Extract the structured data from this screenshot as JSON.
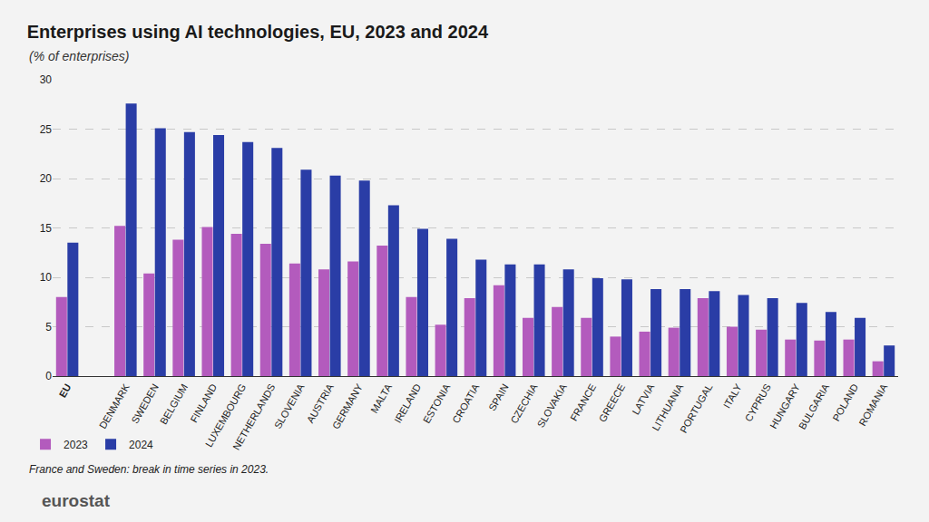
{
  "chart_data": {
    "type": "bar",
    "title": "Enterprises using AI technologies, EU, 2023 and 2024",
    "subtitle": "(% of enterprises)",
    "categories": [
      "EU",
      null,
      "DENMARK",
      "SWEDEN",
      "BELGIUM",
      "FINLAND",
      "LUXEMBOURG",
      "NETHERLANDS",
      "SLOVENIA",
      "AUSTRIA",
      "GERMANY",
      "MALTA",
      "IRELAND",
      "ESTONIA",
      "CROATIA",
      "SPAIN",
      "CZECHIA",
      "SLOVAKIA",
      "FRANCE",
      "GREECE",
      "LATVIA",
      "LITHUANIA",
      "PORTUGAL",
      "ITALY",
      "CYPRUS",
      "HUNGARY",
      "BULGARIA",
      "POLAND",
      "ROMANIA"
    ],
    "series": [
      {
        "name": "2023",
        "color": "#b35bbd",
        "values": [
          8.0,
          null,
          15.2,
          10.4,
          13.8,
          15.1,
          14.4,
          13.4,
          11.4,
          10.8,
          11.6,
          13.2,
          8.0,
          5.2,
          7.9,
          9.2,
          5.9,
          7.0,
          5.9,
          4.0,
          4.5,
          4.9,
          7.9,
          5.0,
          4.7,
          3.7,
          3.6,
          3.7,
          1.5
        ]
      },
      {
        "name": "2024",
        "color": "#2a3da6",
        "values": [
          13.5,
          null,
          27.6,
          25.1,
          24.7,
          24.4,
          23.7,
          23.1,
          20.9,
          20.3,
          19.8,
          17.3,
          14.9,
          13.9,
          11.8,
          11.3,
          11.3,
          10.8,
          9.9,
          9.8,
          8.8,
          8.8,
          8.6,
          8.2,
          7.9,
          7.4,
          6.5,
          5.9,
          3.1
        ]
      }
    ],
    "ylim": [
      0,
      30
    ],
    "yticks": [
      0,
      5,
      10,
      15,
      20,
      25,
      30
    ],
    "grid": true,
    "legend": "bottom left",
    "annotations": [
      "France and Sweden: break in time series in 2023.",
      "eurostat"
    ]
  }
}
